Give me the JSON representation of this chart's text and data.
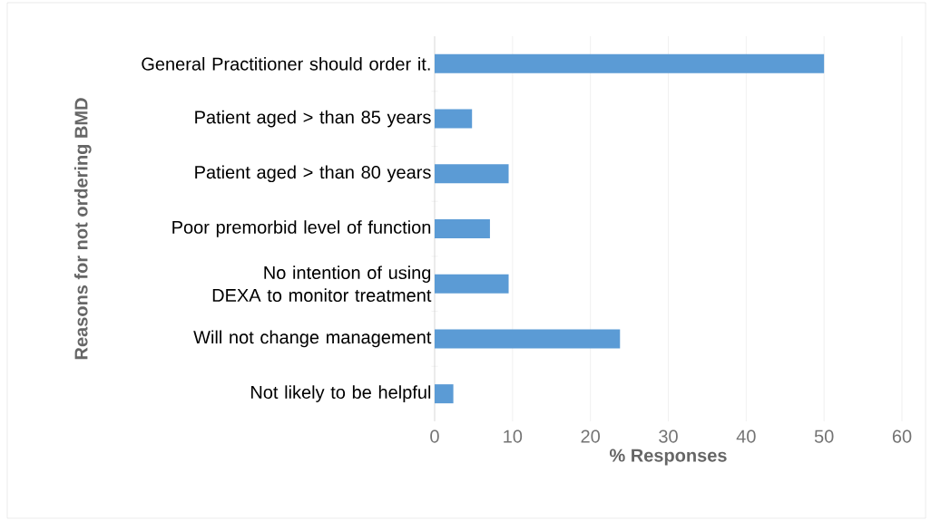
{
  "chart_data": {
    "type": "bar",
    "orientation": "horizontal",
    "xlabel": "% Responses",
    "ylabel": "Reasons for not ordering BMD",
    "categories": [
      "General Practitioner should order it.",
      "Patient aged > than 85 years",
      "Patient aged > than 80 years",
      "Poor premorbid level of function",
      "No intention of using DEXA to monitor treatment",
      "Will not change management",
      "Not likely to be helpful"
    ],
    "values": [
      50,
      4.8,
      9.5,
      7.1,
      9.5,
      23.8,
      2.4
    ],
    "color": "#5b9bd5",
    "xlim": [
      0,
      60
    ],
    "xticks": [
      0,
      10,
      20,
      30,
      40,
      50,
      60
    ],
    "grid": "x"
  }
}
